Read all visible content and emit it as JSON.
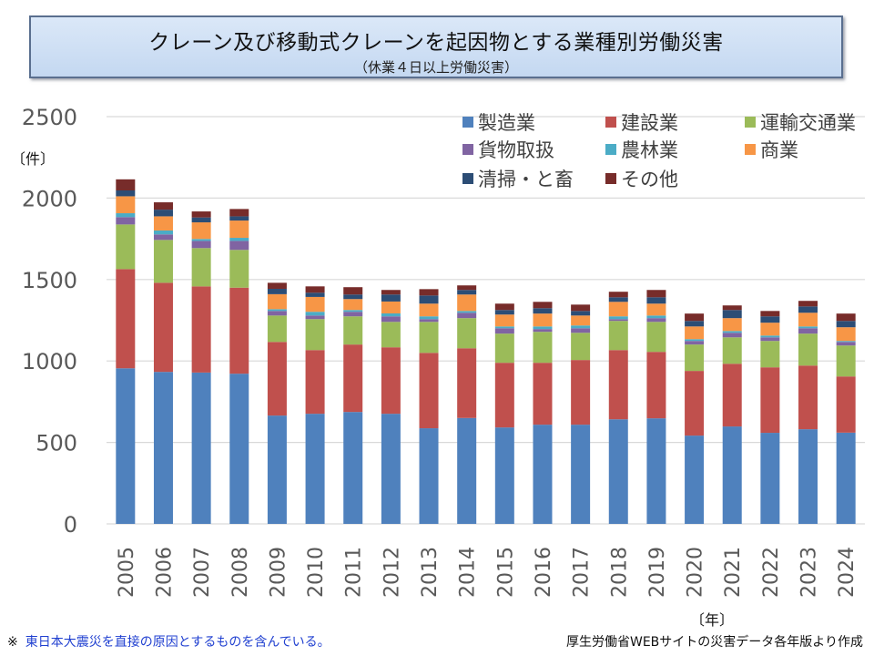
{
  "header": {
    "title": "クレーン及び移動式クレーンを起因物とする業種別労働災害",
    "subtitle": "（休業４日以上労働災害）"
  },
  "footer": {
    "note_mark": "※",
    "note": "東日本大震災を直接の原因とするものを含んでいる。",
    "source": "厚生労働省WEBサイトの災害データ各年版より作成"
  },
  "chart_data": {
    "type": "bar",
    "stacked": true,
    "title": "クレーン及び移動式クレーンを起因物とする業種別労働災害",
    "subtitle": "（休業４日以上労働災害）",
    "xlabel": "〔年〕",
    "ylabel": "〔件〕",
    "ylim": [
      0,
      2500
    ],
    "yticks": [
      0,
      500,
      1000,
      1500,
      2000,
      2500
    ],
    "grid": true,
    "legend_position": "top-right",
    "categories": [
      "2005",
      "2006",
      "2007",
      "2008",
      "2009",
      "2010",
      "2011",
      "2012",
      "2013",
      "2014",
      "2015",
      "2016",
      "2017",
      "2018",
      "2019",
      "2020",
      "2021",
      "2022",
      "2023",
      "2024"
    ],
    "series": [
      {
        "name": "製造業",
        "color": "#4f81bd",
        "values": [
          955,
          933,
          929,
          922,
          665,
          676,
          687,
          676,
          587,
          650,
          592,
          609,
          609,
          642,
          648,
          542,
          598,
          559,
          581,
          560
        ]
      },
      {
        "name": "建設業",
        "color": "#c0504d",
        "values": [
          609,
          547,
          529,
          528,
          452,
          391,
          414,
          408,
          463,
          428,
          397,
          380,
          397,
          425,
          408,
          397,
          385,
          402,
          391,
          345
        ]
      },
      {
        "name": "運輸交通業",
        "color": "#9bbb59",
        "values": [
          274,
          263,
          235,
          232,
          162,
          190,
          173,
          156,
          190,
          185,
          179,
          190,
          167,
          179,
          184,
          162,
          162,
          162,
          196,
          190
        ]
      },
      {
        "name": "貨物取扱",
        "color": "#8064a2",
        "values": [
          45,
          34,
          44,
          55,
          28,
          22,
          28,
          34,
          17,
          33,
          33,
          17,
          28,
          11,
          23,
          22,
          28,
          22,
          33,
          22
        ]
      },
      {
        "name": "農林業",
        "color": "#4bacc6",
        "values": [
          24,
          24,
          12,
          19,
          11,
          23,
          11,
          18,
          17,
          11,
          11,
          16,
          17,
          17,
          16,
          11,
          11,
          11,
          11,
          6
        ]
      },
      {
        "name": "商業",
        "color": "#f79646",
        "values": [
          104,
          87,
          102,
          106,
          92,
          91,
          67,
          73,
          78,
          101,
          73,
          79,
          61,
          89,
          73,
          78,
          79,
          79,
          84,
          84
        ]
      },
      {
        "name": "清掃・と畜",
        "color": "#2c4d75",
        "values": [
          36,
          41,
          30,
          26,
          33,
          26,
          28,
          43,
          50,
          28,
          28,
          33,
          28,
          28,
          39,
          34,
          50,
          39,
          39,
          39
        ]
      },
      {
        "name": "その他",
        "color": "#772c2a",
        "values": [
          68,
          45,
          37,
          45,
          37,
          39,
          45,
          28,
          39,
          28,
          39,
          39,
          39,
          34,
          45,
          45,
          28,
          33,
          34,
          45
        ]
      }
    ]
  }
}
